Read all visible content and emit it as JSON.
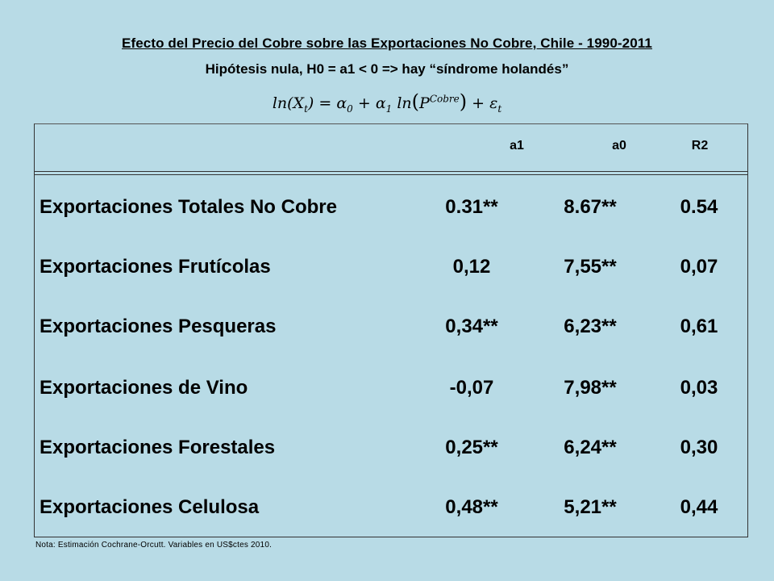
{
  "title": "Efecto del Precio del Cobre sobre las Exportaciones No Cobre, Chile - 1990-2011",
  "subtitle": "Hipótesis nula, H0 = a1 < 0  => hay “síndrome holandés”",
  "formula": {
    "lhs": "ln(X",
    "lhs_sub": "t",
    "lhs_close": ") = ",
    "alpha0": "α",
    "alpha0_sub": "0",
    "plus1": " + ",
    "alpha1": "α",
    "alpha1_sub": "1",
    "ln2": " ln",
    "open": "(",
    "p": "P",
    "p_sup": "Cobre",
    "close": ")",
    "plus2": " + ε",
    "eps_sub": "t"
  },
  "table": {
    "headers": [
      "a1",
      "a0",
      "R2"
    ],
    "rows": [
      {
        "label": "Exportaciones Totales No Cobre",
        "a1": "0.31**",
        "a0": "8.67**",
        "r2": "0.54"
      },
      {
        "label": "Exportaciones Frutícolas",
        "a1": "0,12",
        "a0": "7,55**",
        "r2": "0,07"
      },
      {
        "label": "Exportaciones Pesqueras",
        "a1": "0,34**",
        "a0": "6,23**",
        "r2": "0,61"
      },
      {
        "label": "Exportaciones de Vino",
        "a1": "-0,07",
        "a0": "7,98**",
        "r2": "0,03"
      },
      {
        "label": "Exportaciones Forestales",
        "a1": "0,25**",
        "a0": "6,24**",
        "r2": "0,30"
      },
      {
        "label": "Exportaciones Celulosa",
        "a1": "0,48**",
        "a0": "5,21**",
        "r2": "0,44"
      }
    ]
  },
  "note": "Nota: Estimación Cochrane-Orcutt. Variables en US$ctes 2010."
}
